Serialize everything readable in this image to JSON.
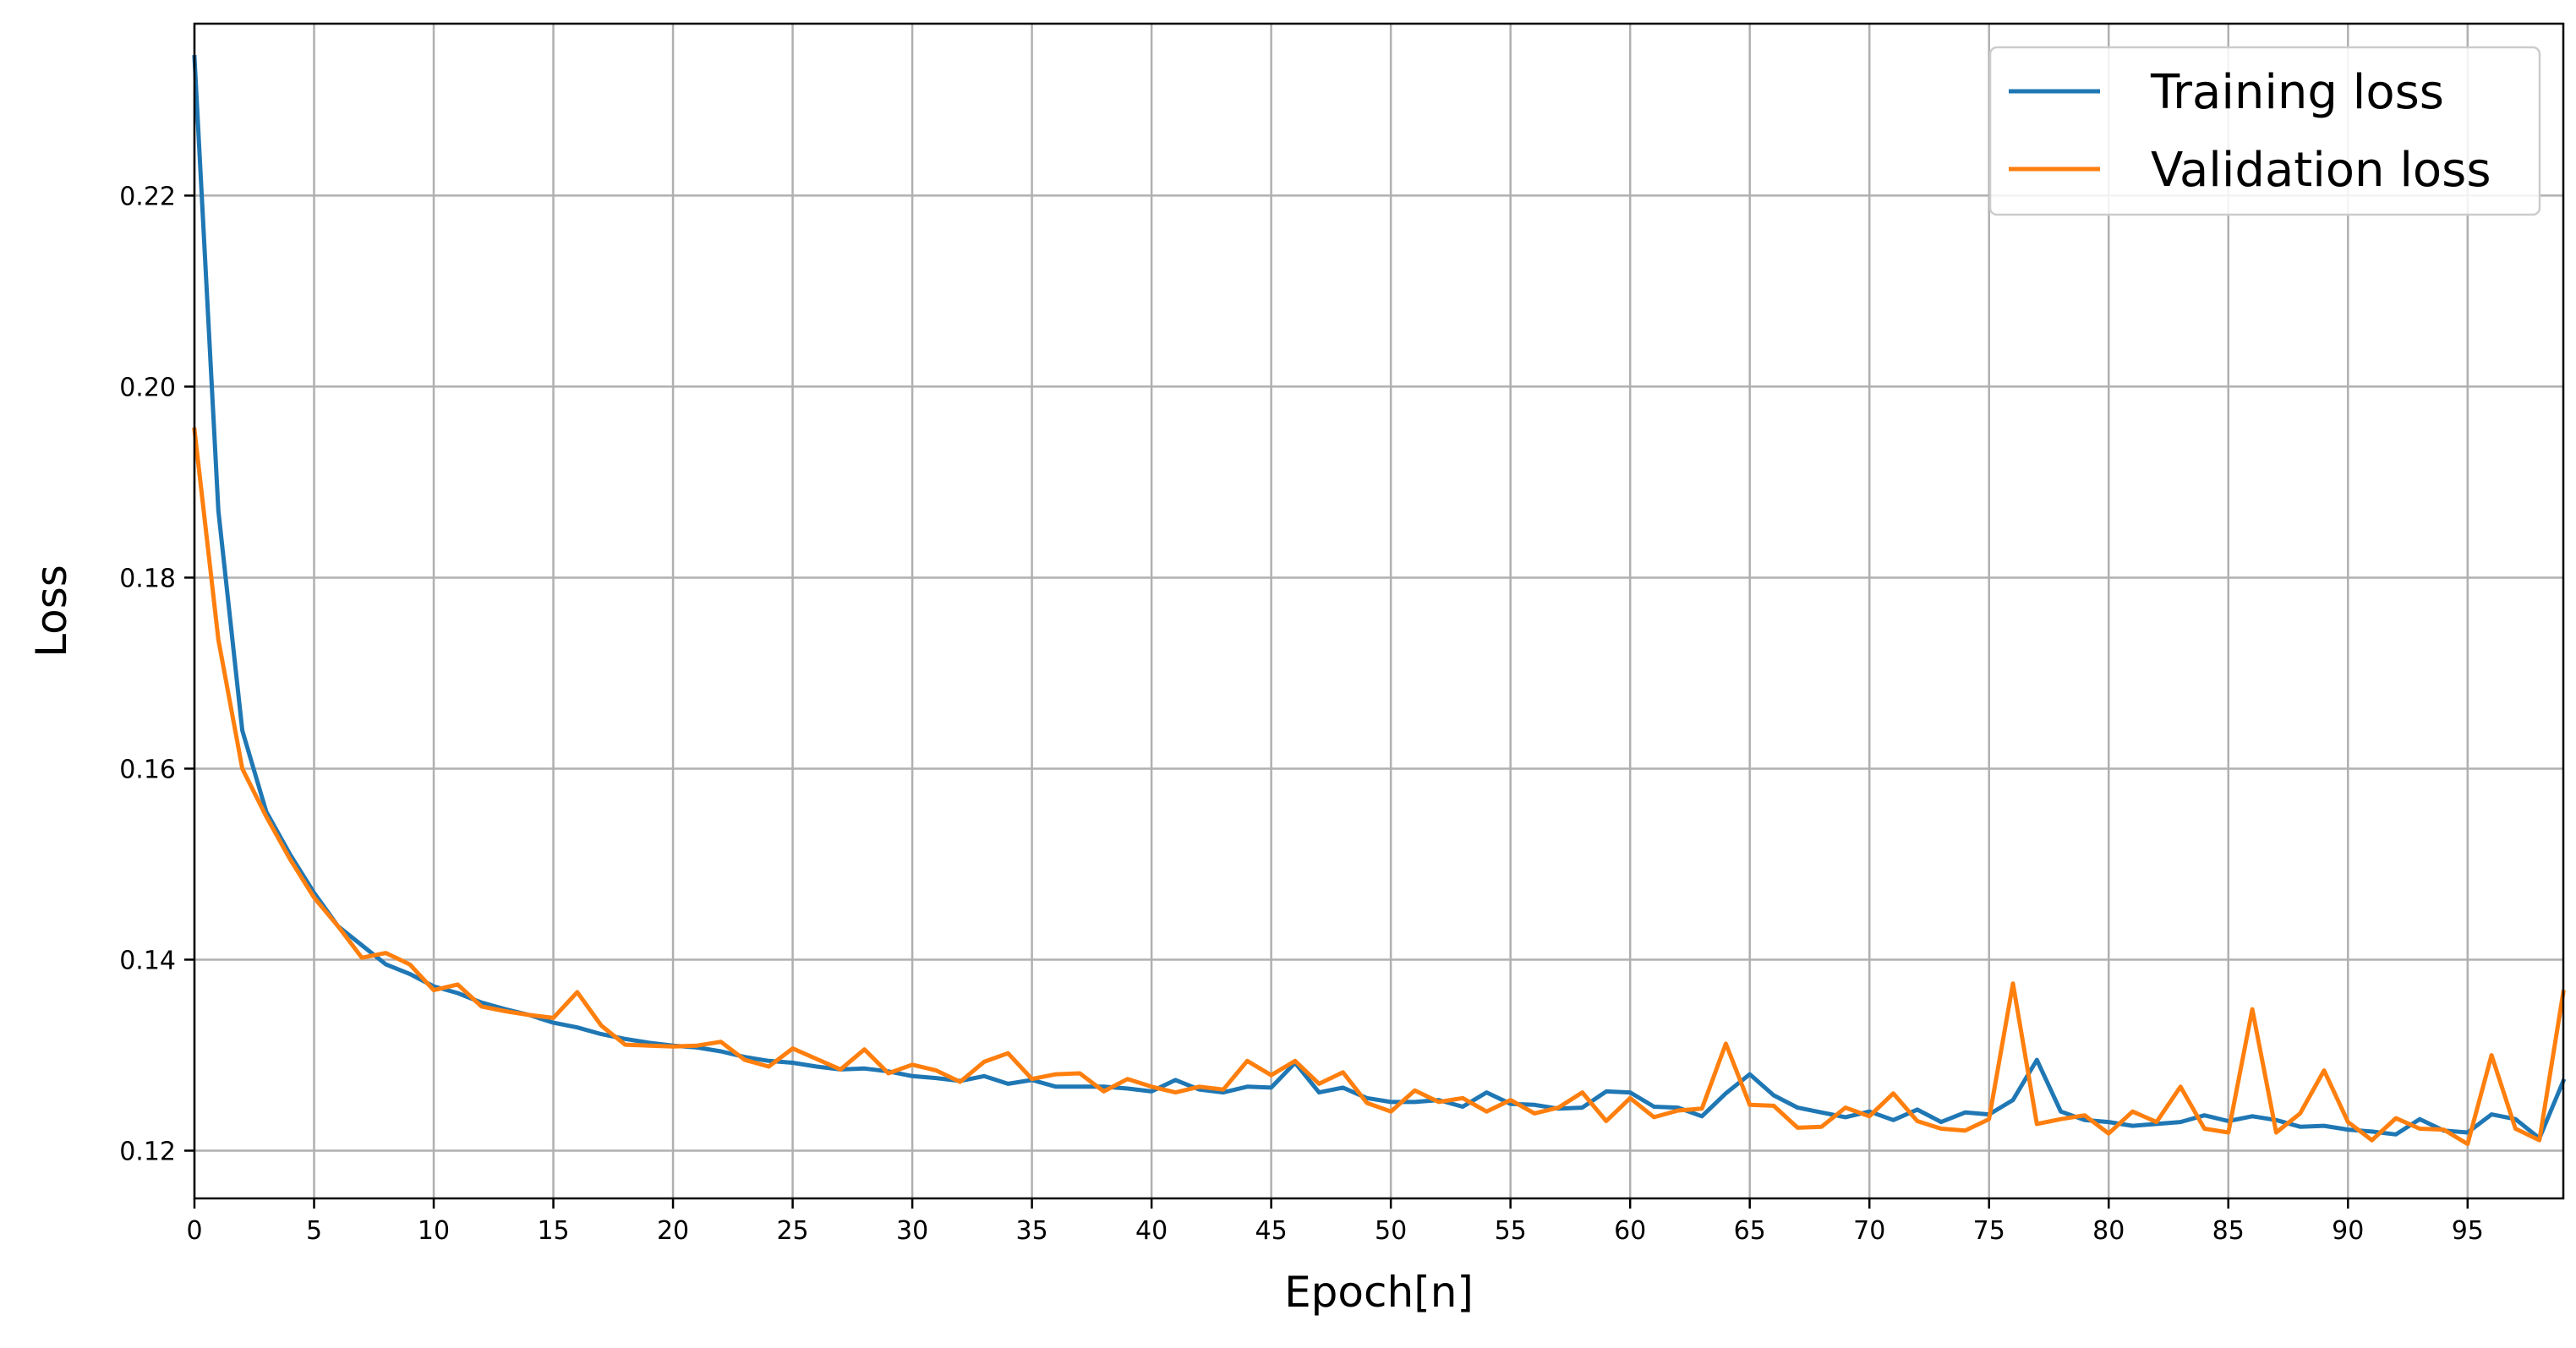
{
  "chart_data": {
    "type": "line",
    "title": "",
    "xlabel": "Epoch[n]",
    "ylabel": "Loss",
    "xlim": [
      0,
      99
    ],
    "ylim": [
      0.115,
      0.238
    ],
    "xticks": [
      0,
      5,
      10,
      15,
      20,
      25,
      30,
      35,
      40,
      45,
      50,
      55,
      60,
      65,
      70,
      75,
      80,
      85,
      90,
      95
    ],
    "yticks": [
      0.12,
      0.14,
      0.16,
      0.18,
      0.2,
      0.22
    ],
    "ytick_labels": [
      "0.12",
      "0.14",
      "0.16",
      "0.18",
      "0.20",
      "0.22"
    ],
    "grid": true,
    "legend_position": "top-right",
    "series": [
      {
        "name": "Training loss",
        "color": "#1f77b4",
        "values": [
          0.2345,
          0.187,
          0.164,
          0.1555,
          0.151,
          0.147,
          0.1435,
          0.1415,
          0.1395,
          0.1385,
          0.1372,
          0.1365,
          0.1355,
          0.1348,
          0.1342,
          0.1334,
          0.1329,
          0.1322,
          0.1317,
          0.1313,
          0.131,
          0.1308,
          0.1304,
          0.1298,
          0.1294,
          0.1292,
          0.1288,
          0.1285,
          0.1286,
          0.1283,
          0.1278,
          0.1276,
          0.1273,
          0.1278,
          0.127,
          0.1274,
          0.1267,
          0.1267,
          0.1267,
          0.1265,
          0.1262,
          0.1274,
          0.1264,
          0.1261,
          0.1267,
          0.1266,
          0.1292,
          0.1261,
          0.1266,
          0.1255,
          0.1251,
          0.1251,
          0.1253,
          0.1246,
          0.1261,
          0.1249,
          0.1248,
          0.1244,
          0.1245,
          0.1262,
          0.1261,
          0.1246,
          0.1245,
          0.1236,
          0.126,
          0.128,
          0.1258,
          0.1245,
          0.124,
          0.1235,
          0.1241,
          0.1232,
          0.1243,
          0.123,
          0.124,
          0.1238,
          0.1253,
          0.1295,
          0.1241,
          0.1232,
          0.123,
          0.1226,
          0.1228,
          0.123,
          0.1237,
          0.1231,
          0.1236,
          0.1232,
          0.1225,
          0.1226,
          0.1222,
          0.122,
          0.1217,
          0.1233,
          0.1221,
          0.1219,
          0.1238,
          0.1233,
          0.1213,
          0.1273
        ]
      },
      {
        "name": "Validation loss",
        "color": "#ff7f0e",
        "values": [
          0.1955,
          0.1735,
          0.16,
          0.155,
          0.1505,
          0.1465,
          0.1435,
          0.1402,
          0.1407,
          0.1395,
          0.1368,
          0.1374,
          0.1351,
          0.1346,
          0.1342,
          0.1339,
          0.1366,
          0.1331,
          0.1311,
          0.131,
          0.1309,
          0.131,
          0.1314,
          0.1295,
          0.1288,
          0.1307,
          0.1296,
          0.1285,
          0.1306,
          0.1281,
          0.129,
          0.1284,
          0.1272,
          0.1293,
          0.1302,
          0.1275,
          0.128,
          0.1281,
          0.1262,
          0.1275,
          0.1267,
          0.1261,
          0.1267,
          0.1264,
          0.1294,
          0.1279,
          0.1294,
          0.127,
          0.1282,
          0.125,
          0.1241,
          0.1263,
          0.1251,
          0.1255,
          0.1241,
          0.1253,
          0.1239,
          0.1245,
          0.1261,
          0.1231,
          0.1255,
          0.1235,
          0.1242,
          0.1244,
          0.1312,
          0.1248,
          0.1247,
          0.1224,
          0.1225,
          0.1245,
          0.1236,
          0.126,
          0.1231,
          0.1223,
          0.1221,
          0.1233,
          0.1375,
          0.1228,
          0.1233,
          0.1237,
          0.1218,
          0.1241,
          0.123,
          0.1267,
          0.1223,
          0.1219,
          0.1348,
          0.1219,
          0.1239,
          0.1284,
          0.123,
          0.1211,
          0.1234,
          0.1223,
          0.1222,
          0.1207,
          0.13,
          0.1223,
          0.1211,
          0.1366
        ]
      }
    ]
  }
}
